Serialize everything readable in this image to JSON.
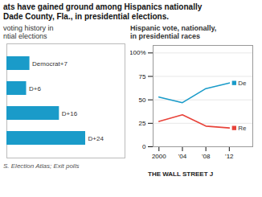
{
  "title": [
    "ats have gained ground among Hispanics nationally",
    "Dade County, Fla., in presidential elections."
  ],
  "annotations": [
    "S. Election Atlas; Exit polls",
    "THE WALL STREET J"
  ],
  "chart_data": [
    {
      "type": "bar",
      "orientation": "horizontal",
      "subtitle": [
        "voting history in",
        "ntial elections"
      ],
      "categories": [
        null,
        null,
        null,
        null
      ],
      "values": [
        7,
        6,
        16,
        24
      ],
      "value_labels": [
        "Democrat+7",
        "D+6",
        "D+16",
        "D+24"
      ],
      "data_labels": true,
      "color": "#1a9bc9",
      "xlim": [
        0,
        36
      ],
      "tick_labels": false
    },
    {
      "type": "line",
      "subtitle": [
        "Hispanic vote, nationally,",
        "in presidential races"
      ],
      "x": [
        2000,
        2004,
        2008,
        2012
      ],
      "series": [
        {
          "name": "De",
          "color": "#1a9bc9",
          "values": [
            53,
            47,
            62,
            68
          ]
        },
        {
          "name": "Re",
          "color": "#e8433a",
          "values": [
            27,
            34,
            22,
            20
          ]
        }
      ],
      "xlim": [
        1999,
        2016
      ],
      "xticks": [
        2000,
        {
          "value": 2004,
          "label": "'04"
        },
        {
          "value": 2008,
          "label": "'08"
        },
        {
          "value": 2012,
          "label": "'12"
        }
      ],
      "ylim": [
        0,
        108
      ],
      "yticks": [
        0,
        25,
        50,
        75,
        {
          "value": 100,
          "label": "100%"
        }
      ],
      "grid": true,
      "legend": "right",
      "marker": "square"
    }
  ]
}
